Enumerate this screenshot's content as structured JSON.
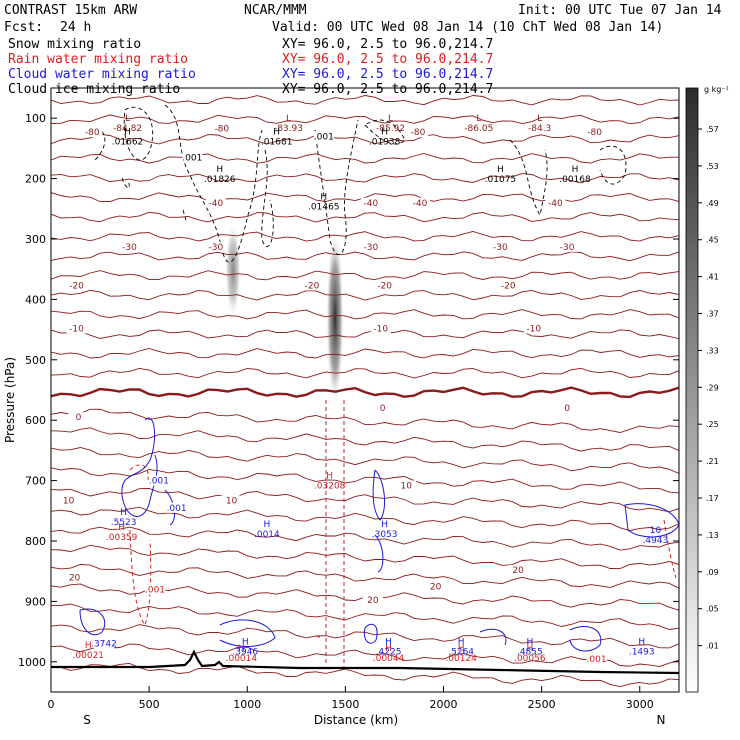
{
  "header": {
    "model": "CONTRAST 15km ARW",
    "center": "NCAR/MMM",
    "init": "Init: 00 UTC Tue 07 Jan 14",
    "fcst_label": "Fcst:",
    "fcst_value": "24 h",
    "valid": "Valid: 00 UTC Wed 08 Jan 14 (10 ChT Wed 08 Jan 14)"
  },
  "fields": [
    {
      "name": "Snow mixing ratio",
      "xy": "XY=  96.0,  2.5 to  96.0,214.7",
      "color": "#000000"
    },
    {
      "name": "Rain water mixing ratio",
      "xy": "XY=  96.0,  2.5 to  96.0,214.7",
      "color": "#d81e1e"
    },
    {
      "name": "Cloud water mixing ratio",
      "xy": "XY=  96.0,  2.5 to  96.0,214.7",
      "color": "#1a1ad6"
    },
    {
      "name": "Cloud ice mixing ratio",
      "xy": "XY=  96.0,  2.5 to  96.0,214.7",
      "color": "#000000"
    }
  ],
  "chart_data": {
    "type": "cross-section",
    "xlabel": "Distance (km)",
    "ylabel": "Pressure (hPa)",
    "xlim": [
      0,
      3200
    ],
    "ylim": [
      1050,
      50
    ],
    "xticks": [
      0,
      500,
      1000,
      1500,
      2000,
      2500,
      3000
    ],
    "yticks": [
      100,
      200,
      300,
      400,
      500,
      600,
      700,
      800,
      900,
      1000
    ],
    "endpoints": {
      "left": "S",
      "right": "N"
    },
    "colorbar": {
      "units": "g kg⁻¹",
      "levels": [
        ".57",
        ".53",
        ".49",
        ".45",
        ".41",
        ".37",
        ".33",
        ".29",
        ".25",
        ".21",
        ".17",
        ".13",
        ".09",
        ".05",
        ".01"
      ]
    },
    "temperature_contours": [
      {
        "label": "-80",
        "x": 210,
        "p": 128
      },
      {
        "label": "-80",
        "x": 870,
        "p": 122
      },
      {
        "label": "-80",
        "x": 1870,
        "p": 128
      },
      {
        "label": "-80",
        "x": 2770,
        "p": 128
      },
      {
        "label": "-40",
        "x": 840,
        "p": 245
      },
      {
        "label": "-40",
        "x": 1630,
        "p": 245
      },
      {
        "label": "-40",
        "x": 1880,
        "p": 245
      },
      {
        "label": "-40",
        "x": 2570,
        "p": 245
      },
      {
        "label": "-30",
        "x": 400,
        "p": 318
      },
      {
        "label": "-30",
        "x": 840,
        "p": 318
      },
      {
        "label": "-30",
        "x": 1630,
        "p": 318
      },
      {
        "label": "-30",
        "x": 2290,
        "p": 318
      },
      {
        "label": "-30",
        "x": 2630,
        "p": 318
      },
      {
        "label": "-20",
        "x": 130,
        "p": 382
      },
      {
        "label": "-20",
        "x": 1330,
        "p": 382
      },
      {
        "label": "-20",
        "x": 1700,
        "p": 382
      },
      {
        "label": "-20",
        "x": 2330,
        "p": 382
      },
      {
        "label": "-10",
        "x": 130,
        "p": 453
      },
      {
        "label": "-10",
        "x": 1680,
        "p": 453
      },
      {
        "label": "-10",
        "x": 2460,
        "p": 453
      },
      {
        "label": "0",
        "x": 140,
        "p": 600
      },
      {
        "label": "0",
        "x": 1690,
        "p": 585
      },
      {
        "label": "0",
        "x": 2630,
        "p": 585
      },
      {
        "label": "10",
        "x": 90,
        "p": 738
      },
      {
        "label": "10",
        "x": 920,
        "p": 738
      },
      {
        "label": "10",
        "x": 1810,
        "p": 713
      },
      {
        "label": "20",
        "x": 120,
        "p": 865
      },
      {
        "label": "20",
        "x": 1640,
        "p": 903
      },
      {
        "label": "20",
        "x": 1960,
        "p": 880
      },
      {
        "label": "20",
        "x": 2380,
        "p": 853
      }
    ],
    "low_markers": [
      {
        "label": "L",
        "value": "-84.82",
        "x": 390,
        "p": 118
      },
      {
        "label": "L",
        "value": "-83.93",
        "x": 1210,
        "p": 118
      },
      {
        "label": "L",
        "value": "-85.92",
        "x": 1730,
        "p": 118
      },
      {
        "label": "L",
        "value": "-86.05",
        "x": 2180,
        "p": 118
      },
      {
        "label": "L",
        "value": "-84.3",
        "x": 2490,
        "p": 118
      }
    ],
    "snow_labels": [
      {
        "label": ".001",
        "x": 720,
        "p": 170
      },
      {
        "label": ".001",
        "x": 1390,
        "p": 135
      }
    ],
    "cloud_ice_maxima": [
      {
        "label": "H",
        "value": ".01662",
        "x": 390,
        "p": 140
      },
      {
        "label": "H",
        "value": ".01681",
        "x": 1150,
        "p": 140
      },
      {
        "label": "H",
        "value": ".01938",
        "x": 1700,
        "p": 140
      },
      {
        "label": "H",
        "value": ".01826",
        "x": 860,
        "p": 202
      },
      {
        "label": "H",
        "value": ".01465",
        "x": 1390,
        "p": 248
      },
      {
        "label": "H",
        "value": ".01075",
        "x": 2290,
        "p": 202
      },
      {
        "label": "H",
        "value": ".00168",
        "x": 2670,
        "p": 202
      }
    ],
    "rain_labels": [
      {
        "label": "H",
        "value": ".03208",
        "x": 1420,
        "p": 710
      },
      {
        "label": "H",
        "value": ".00359",
        "x": 360,
        "p": 795
      },
      {
        "label": ".001",
        "x": "530",
        "p": 885
      },
      {
        "label": "H",
        "value": ".00021",
        "x": 190,
        "p": 990
      },
      {
        "label": "H",
        "value": ".00014",
        "x": 970,
        "p": 995
      },
      {
        "label": "H",
        "value": ".00044",
        "x": 1720,
        "p": 995
      },
      {
        "label": "H",
        "value": ".00124",
        "x": 2090,
        "p": 995
      },
      {
        "label": "H",
        "value": ".00056",
        "x": 2440,
        "p": 995
      },
      {
        "label": ".001",
        "x": 2780,
        "p": 1000
      }
    ],
    "cloud_water_labels": [
      {
        "label": ".001",
        "x": 550,
        "p": 705
      },
      {
        "label": "H",
        "value": ".5523",
        "x": 370,
        "p": 770
      },
      {
        "label": ".001",
        "x": 640,
        "p": 750
      },
      {
        "label": "H",
        "value": ".0014",
        "x": 1100,
        "p": 790
      },
      {
        "label": "H",
        "value": ".3053",
        "x": 1700,
        "p": 790
      },
      {
        "label": ".3742",
        "x": 270,
        "p": 975
      },
      {
        "label": "H",
        "value": ".3946",
        "x": 990,
        "p": 985
      },
      {
        "label": "H",
        "value": ".4225",
        "x": 1720,
        "p": 985
      },
      {
        "label": "H",
        "value": ".5264",
        "x": 2090,
        "p": 985
      },
      {
        "label": "H",
        "value": ".4855",
        "x": 2440,
        "p": 985
      },
      {
        "label": "H",
        "value": ".1493",
        "x": 3010,
        "p": 985
      },
      {
        "label": "10",
        "value": ".4943",
        "x": 3080,
        "p": 800
      }
    ]
  }
}
